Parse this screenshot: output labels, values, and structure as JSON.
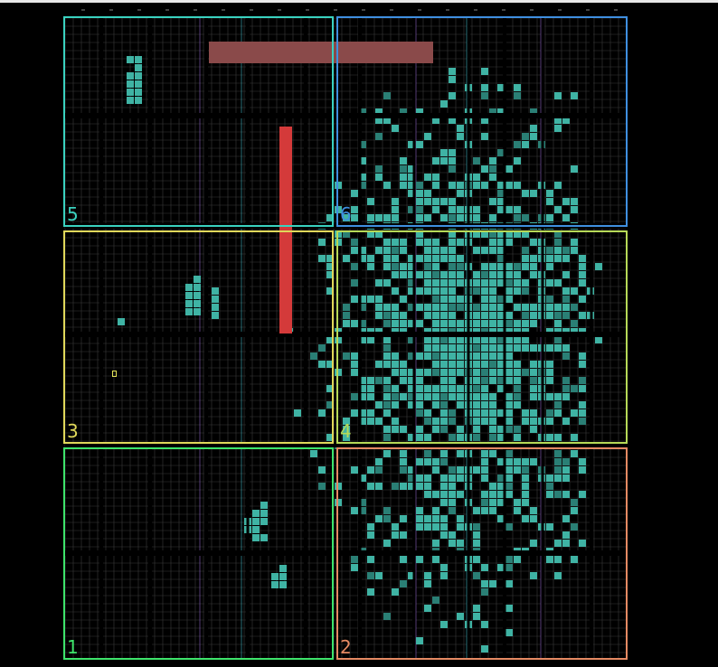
{
  "view": {
    "background": "#000000",
    "fabric_grid_color": "#3a3a3a",
    "utilized_cell_color": "#3fb3a4",
    "utilized_cell_dark_color": "#2a7f75",
    "clock_spine_colors": [
      "#45c7d6",
      "#9a6bd6"
    ]
  },
  "pblocks": [
    {
      "id": "pblock-5",
      "label": "5",
      "color": "#3ad2c0"
    },
    {
      "id": "pblock-6",
      "label": "6",
      "color": "#3f8fe0"
    },
    {
      "id": "pblock-3",
      "label": "3",
      "color": "#e0d85a"
    },
    {
      "id": "pblock-4",
      "label": "4",
      "color": "#b6d957"
    },
    {
      "id": "pblock-1",
      "label": "1",
      "color": "#3ee46b"
    },
    {
      "id": "pblock-2",
      "label": "2",
      "color": "#e58a63"
    }
  ],
  "macros": [
    {
      "id": "horizontal-macro",
      "color": "#8a4a4a"
    },
    {
      "id": "vertical-macro",
      "color": "#d43a3a"
    }
  ],
  "markers": [
    {
      "id": "selected-site-marker",
      "color": "#e4e457"
    }
  ]
}
